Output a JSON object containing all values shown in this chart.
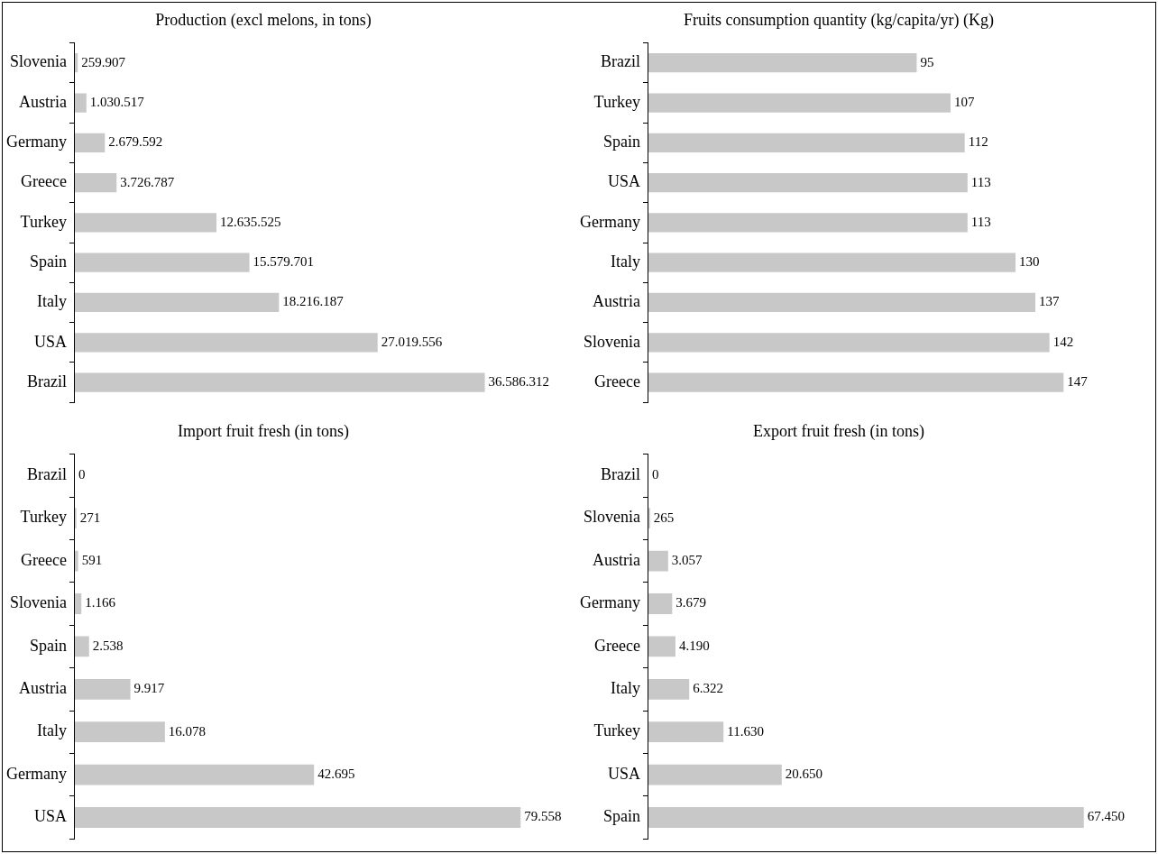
{
  "chart_data": [
    {
      "type": "bar",
      "orientation": "horizontal",
      "title": "Production (excl melons, in tons)",
      "categories": [
        "Slovenia",
        "Austria",
        "Germany",
        "Greece",
        "Turkey",
        "Spain",
        "Italy",
        "USA",
        "Brazil"
      ],
      "values": [
        259907,
        1030517,
        2679592,
        3726787,
        12635525,
        15579701,
        18216187,
        27019556,
        36586312
      ],
      "value_labels": [
        "259.907",
        "1.030.517",
        "2.679.592",
        "3.726.787",
        "12.635.525",
        "15.579.701",
        "18.216.187",
        "27.019.556",
        "36.586.312"
      ],
      "color": "#c8c8c8"
    },
    {
      "type": "bar",
      "orientation": "horizontal",
      "title": "Fruits consumption quantity (kg/capita/yr) (Kg)",
      "categories": [
        "Brazil",
        "Turkey",
        "Spain",
        "USA",
        "Germany",
        "Italy",
        "Austria",
        "Slovenia",
        "Greece"
      ],
      "values": [
        95,
        107,
        112,
        113,
        113,
        130,
        137,
        142,
        147
      ],
      "value_labels": [
        "95",
        "107",
        "112",
        "113",
        "113",
        "130",
        "137",
        "142",
        "147"
      ],
      "color": "#c8c8c8"
    },
    {
      "type": "bar",
      "orientation": "horizontal",
      "title": "Import fruit fresh (in tons)",
      "categories": [
        "Brazil",
        "Turkey",
        "Greece",
        "Slovenia",
        "Spain",
        "Austria",
        "Italy",
        "Germany",
        "USA"
      ],
      "values": [
        0,
        271,
        591,
        1166,
        2538,
        9917,
        16078,
        42695,
        79558
      ],
      "value_labels": [
        "0",
        "271",
        "591",
        "1.166",
        "2.538",
        "9.917",
        "16.078",
        "42.695",
        "79.558"
      ],
      "color": "#c8c8c8"
    },
    {
      "type": "bar",
      "orientation": "horizontal",
      "title": "Export fruit fresh (in tons)",
      "categories": [
        "Brazil",
        "Slovenia",
        "Austria",
        "Germany",
        "Greece",
        "Italy",
        "Turkey",
        "USA",
        "Spain"
      ],
      "values": [
        0,
        265,
        3057,
        3679,
        4190,
        6322,
        11630,
        20650,
        67450
      ],
      "value_labels": [
        "0",
        "265",
        "3.057",
        "3.679",
        "4.190",
        "6.322",
        "11.630",
        "20.650",
        "67.450"
      ],
      "color": "#c8c8c8"
    }
  ]
}
